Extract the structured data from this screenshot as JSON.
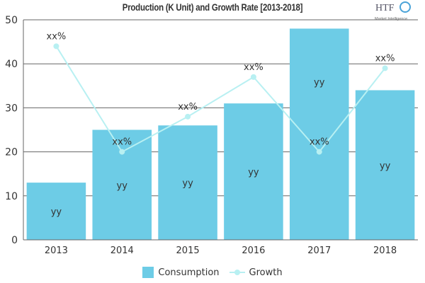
{
  "chart_data": {
    "type": "bar",
    "title": "Production (K Unit) and Growth Rate [2013-2018]",
    "categories": [
      "2013",
      "2014",
      "2015",
      "2016",
      "2017",
      "2018"
    ],
    "ylim": [
      0,
      50
    ],
    "yticks": [
      0,
      10,
      20,
      30,
      40,
      50
    ],
    "grid": true,
    "legend_placement": "bottom",
    "series": [
      {
        "name": "Consumption",
        "type": "bar",
        "color": "#6dcce6",
        "values": [
          13,
          25,
          26,
          31,
          48,
          34
        ],
        "labels": [
          "yy",
          "yy",
          "yy",
          "yy",
          "yy",
          "yy"
        ]
      },
      {
        "name": "Growth",
        "type": "line",
        "color": "#b8f0f2",
        "values": [
          44,
          20,
          28,
          37,
          20,
          39
        ],
        "labels": [
          "xx%",
          "xx%",
          "xx%",
          "xx%",
          "xx%",
          "xx%"
        ]
      }
    ]
  },
  "logo": {
    "text": "HTF",
    "subtext": "Market Intelligence"
  }
}
